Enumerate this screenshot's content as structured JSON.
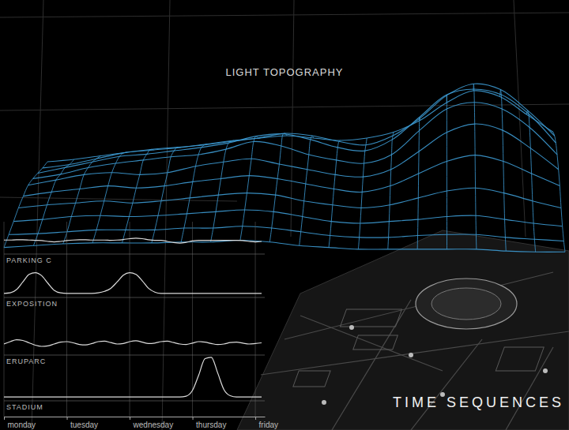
{
  "chart_data": [
    {
      "type": "surface",
      "title": "LIGHT TOPOGRAPHY",
      "color": "#3d9bd4",
      "zlim": [
        0,
        1
      ],
      "tick_labels": false,
      "z": [
        [
          0.2,
          0.22,
          0.25,
          0.28,
          0.3,
          0.32,
          0.35,
          0.38,
          0.4,
          0.42,
          0.4,
          0.38,
          0.4,
          0.45,
          0.55,
          0.7,
          0.8,
          0.75,
          0.6,
          0.45
        ],
        [
          0.22,
          0.25,
          0.3,
          0.35,
          0.38,
          0.4,
          0.42,
          0.45,
          0.48,
          0.52,
          0.5,
          0.45,
          0.42,
          0.5,
          0.65,
          0.85,
          0.95,
          0.9,
          0.72,
          0.5
        ],
        [
          0.25,
          0.3,
          0.35,
          0.4,
          0.42,
          0.45,
          0.48,
          0.52,
          0.58,
          0.6,
          0.55,
          0.48,
          0.45,
          0.55,
          0.75,
          0.95,
          1.0,
          0.95,
          0.78,
          0.52
        ],
        [
          0.28,
          0.32,
          0.38,
          0.42,
          0.45,
          0.48,
          0.5,
          0.55,
          0.62,
          0.58,
          0.5,
          0.45,
          0.42,
          0.5,
          0.72,
          0.92,
          0.98,
          0.92,
          0.75,
          0.5
        ],
        [
          0.3,
          0.35,
          0.4,
          0.42,
          0.4,
          0.42,
          0.48,
          0.52,
          0.55,
          0.5,
          0.45,
          0.4,
          0.38,
          0.45,
          0.62,
          0.8,
          0.88,
          0.82,
          0.65,
          0.45
        ],
        [
          0.28,
          0.32,
          0.35,
          0.38,
          0.36,
          0.38,
          0.42,
          0.45,
          0.48,
          0.45,
          0.4,
          0.35,
          0.32,
          0.38,
          0.5,
          0.62,
          0.68,
          0.62,
          0.5,
          0.38
        ],
        [
          0.25,
          0.28,
          0.3,
          0.32,
          0.3,
          0.32,
          0.35,
          0.38,
          0.4,
          0.38,
          0.32,
          0.28,
          0.25,
          0.28,
          0.35,
          0.42,
          0.45,
          0.4,
          0.32,
          0.25
        ],
        [
          0.2,
          0.22,
          0.25,
          0.26,
          0.25,
          0.26,
          0.28,
          0.3,
          0.32,
          0.3,
          0.25,
          0.2,
          0.18,
          0.2,
          0.22,
          0.25,
          0.26,
          0.22,
          0.18,
          0.15
        ],
        [
          0.15,
          0.16,
          0.18,
          0.2,
          0.2,
          0.2,
          0.22,
          0.22,
          0.24,
          0.22,
          0.18,
          0.14,
          0.12,
          0.12,
          0.14,
          0.15,
          0.15,
          0.12,
          0.1,
          0.08
        ],
        [
          0.1,
          0.12,
          0.14,
          0.15,
          0.15,
          0.15,
          0.16,
          0.16,
          0.18,
          0.16,
          0.12,
          0.1,
          0.08,
          0.08,
          0.08,
          0.08,
          0.08,
          0.06,
          0.05,
          0.05
        ]
      ]
    },
    {
      "type": "line",
      "title": "TIME SEQUENCES",
      "tick_labels": "x",
      "x": [
        0,
        0.1,
        0.2,
        0.3,
        0.4,
        0.5,
        0.6,
        0.7,
        0.8,
        0.9,
        1,
        1.1,
        1.2,
        1.3,
        1.4,
        1.5,
        1.6,
        1.7,
        1.8,
        1.9,
        2,
        2.1,
        2.2,
        2.3,
        2.4,
        2.5,
        2.6,
        2.7,
        2.8,
        2.9,
        3,
        3.1,
        3.2,
        3.3,
        3.4,
        3.5,
        3.6,
        3.7,
        3.8,
        3.9,
        4,
        4.1
      ],
      "xlim": [
        0,
        4.15
      ],
      "xticks": [
        {
          "value": 0,
          "label": "monday"
        },
        {
          "value": 1,
          "label": "tuesday"
        },
        {
          "value": 2,
          "label": "wednesday"
        },
        {
          "value": 3,
          "label": "thursday"
        },
        {
          "value": 4,
          "label": "friday"
        }
      ],
      "ylim": [
        0,
        1
      ],
      "series": [
        {
          "name": "PARKING C",
          "color": "#dcdcdc",
          "values": [
            0.45,
            0.45,
            0.46,
            0.46,
            0.45,
            0.44,
            0.43,
            0.4,
            0.38,
            0.4,
            0.43,
            0.45,
            0.46,
            0.46,
            0.45,
            0.45,
            0.45,
            0.44,
            0.45,
            0.47,
            0.5,
            0.52,
            0.5,
            0.46,
            0.44,
            0.44,
            0.4,
            0.36,
            0.34,
            0.37,
            0.42,
            0.44,
            0.44,
            0.44,
            0.44,
            0.44,
            0.44,
            0.44,
            0.43,
            0.4,
            0.38,
            0.4
          ]
        },
        {
          "name": "EXPOSITION",
          "color": "#dcdcdc",
          "values": [
            0.1,
            0.12,
            0.25,
            0.55,
            0.85,
            0.92,
            0.8,
            0.5,
            0.22,
            0.12,
            0.1,
            0.1,
            0.1,
            0.1,
            0.1,
            0.12,
            0.18,
            0.3,
            0.55,
            0.82,
            0.92,
            0.85,
            0.6,
            0.3,
            0.15,
            0.1,
            0.1,
            0.1,
            0.1,
            0.1,
            0.1,
            0.1,
            0.1,
            0.1,
            0.1,
            0.1,
            0.1,
            0.1,
            0.1,
            0.1,
            0.1,
            0.1
          ]
        },
        {
          "name": "ERUPARC",
          "color": "#dcdcdc",
          "values": [
            0.4,
            0.5,
            0.58,
            0.55,
            0.45,
            0.35,
            0.3,
            0.32,
            0.4,
            0.48,
            0.5,
            0.45,
            0.38,
            0.36,
            0.42,
            0.5,
            0.52,
            0.46,
            0.4,
            0.42,
            0.5,
            0.54,
            0.48,
            0.42,
            0.44,
            0.5,
            0.52,
            0.46,
            0.4,
            0.38,
            0.44,
            0.5,
            0.48,
            0.42,
            0.38,
            0.4,
            0.46,
            0.48,
            0.44,
            0.4,
            0.42,
            0.45
          ]
        },
        {
          "name": "STADIUM",
          "color": "#dcdcdc",
          "values": [
            0.05,
            0.05,
            0.05,
            0.05,
            0.05,
            0.05,
            0.05,
            0.05,
            0.05,
            0.05,
            0.05,
            0.05,
            0.05,
            0.05,
            0.05,
            0.05,
            0.05,
            0.05,
            0.05,
            0.05,
            0.05,
            0.05,
            0.05,
            0.05,
            0.05,
            0.05,
            0.05,
            0.05,
            0.05,
            0.07,
            0.2,
            0.55,
            0.92,
            0.95,
            0.6,
            0.22,
            0.08,
            0.05,
            0.05,
            0.05,
            0.05,
            0.05
          ]
        }
      ]
    }
  ]
}
